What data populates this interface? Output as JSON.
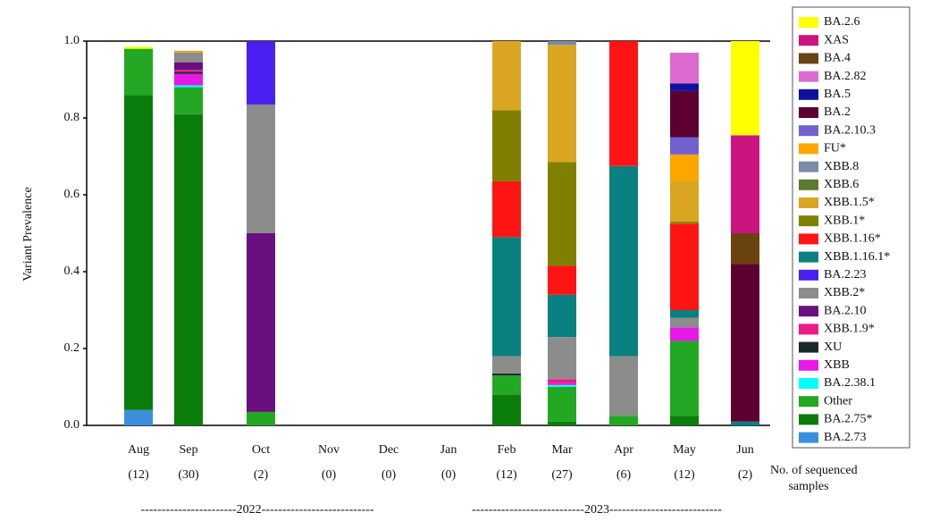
{
  "chart_data": {
    "type": "stacked_bar",
    "y_label": "Variant Prevalence",
    "categories": [
      "Aug",
      "Sep",
      "Oct",
      "Nov",
      "Dec",
      "Jan",
      "Feb",
      "Mar",
      "Apr",
      "May",
      "Jun"
    ],
    "sample_counts": [
      "(12)",
      "(30)",
      "(2)",
      "(0)",
      "(0)",
      "(0)",
      "(12)",
      "(27)",
      "(6)",
      "(12)",
      "(2)"
    ],
    "samples_note": [
      "No. of sequenced",
      "samples"
    ],
    "year_labels": [
      "-----------------------2022---------------------------",
      "---------------------------2023---------------------------"
    ],
    "ylim": [
      0,
      1
    ],
    "yticks": [
      {
        "value": 0,
        "label": "0.0"
      },
      {
        "value": 0.2,
        "label": "0.2"
      },
      {
        "value": 0.4,
        "label": "0.4"
      },
      {
        "value": 0.6,
        "label": "0.6"
      },
      {
        "value": 0.8,
        "label": "0.8"
      },
      {
        "value": 1,
        "label": "1.0"
      }
    ],
    "series": [
      {
        "name": "BA.2.73",
        "color": "#3a8fdc",
        "values": [
          0.04,
          0,
          0,
          0,
          0,
          0,
          0,
          0,
          0,
          0,
          0
        ]
      },
      {
        "name": "BA.2.75*",
        "color": "#0a7d0a",
        "values": [
          0.82,
          0.81,
          0,
          0,
          0,
          0,
          0.08,
          0.01,
          0,
          0.025,
          0
        ]
      },
      {
        "name": "Other",
        "color": "#22a822",
        "values": [
          0.12,
          0.07,
          0.035,
          0,
          0,
          0,
          0.05,
          0.09,
          0.025,
          0.195,
          0
        ]
      },
      {
        "name": "BA.2.38.1",
        "color": "#00ffff",
        "values": [
          0,
          0.005,
          0,
          0,
          0,
          0,
          0,
          0.005,
          0,
          0,
          0
        ]
      },
      {
        "name": "XBB",
        "color": "#e619e6",
        "values": [
          0,
          0.03,
          0,
          0,
          0,
          0,
          0,
          0.005,
          0,
          0.035,
          0
        ]
      },
      {
        "name": "XU",
        "color": "#1a2a2a",
        "values": [
          0,
          0.005,
          0,
          0,
          0,
          0,
          0.005,
          0,
          0,
          0,
          0
        ]
      },
      {
        "name": "XBB.1.9*",
        "color": "#ee1a8a",
        "values": [
          0,
          0.005,
          0,
          0,
          0,
          0,
          0,
          0.01,
          0,
          0,
          0
        ]
      },
      {
        "name": "BA.2.10",
        "color": "#6a0f7f",
        "values": [
          0,
          0.02,
          0.465,
          0,
          0,
          0,
          0,
          0,
          0,
          0,
          0
        ]
      },
      {
        "name": "XBB.2*",
        "color": "#8c8c8c",
        "values": [
          0,
          0.025,
          0.335,
          0,
          0,
          0,
          0.045,
          0.11,
          0.155,
          0.025,
          0
        ]
      },
      {
        "name": "BA.2.23",
        "color": "#4b1ff0",
        "values": [
          0,
          0,
          0.165,
          0,
          0,
          0,
          0,
          0,
          0,
          0,
          0
        ]
      },
      {
        "name": "XBB.1.16.1*",
        "color": "#0a8080",
        "values": [
          0,
          0,
          0,
          0,
          0,
          0,
          0.31,
          0.11,
          0.495,
          0.02,
          0.01
        ]
      },
      {
        "name": "XBB.1.16*",
        "color": "#ff1414",
        "values": [
          0,
          0,
          0,
          0,
          0,
          0,
          0.145,
          0.075,
          0.325,
          0.225,
          0
        ]
      },
      {
        "name": "XBB.1*",
        "color": "#808000",
        "values": [
          0,
          0,
          0,
          0,
          0,
          0,
          0.185,
          0.27,
          0,
          0.005,
          0
        ]
      },
      {
        "name": "XBB.1.5*",
        "color": "#daa520",
        "values": [
          0,
          0.005,
          0,
          0,
          0,
          0,
          0.18,
          0.305,
          0,
          0.105,
          0
        ]
      },
      {
        "name": "XBB.6",
        "color": "#5c7a30",
        "values": [
          0,
          0,
          0,
          0,
          0,
          0,
          0,
          0,
          0,
          0,
          0
        ]
      },
      {
        "name": "XBB.8",
        "color": "#7a8aa8",
        "values": [
          0,
          0,
          0,
          0,
          0,
          0,
          0,
          0.01,
          0,
          0,
          0
        ]
      },
      {
        "name": "FU*",
        "color": "#ffa500",
        "values": [
          0,
          0,
          0,
          0,
          0,
          0,
          0,
          0,
          0,
          0.07,
          0
        ]
      },
      {
        "name": "BA.2.10.3",
        "color": "#7060d0",
        "values": [
          0,
          0,
          0,
          0,
          0,
          0,
          0,
          0,
          0,
          0.045,
          0
        ]
      },
      {
        "name": "BA.2",
        "color": "#5c0030",
        "values": [
          0,
          0,
          0,
          0,
          0,
          0,
          0,
          0,
          0,
          0.12,
          0.41
        ]
      },
      {
        "name": "BA.5",
        "color": "#1010a0",
        "values": [
          0,
          0,
          0,
          0,
          0,
          0,
          0,
          0,
          0,
          0.02,
          0
        ]
      },
      {
        "name": "BA.2.82",
        "color": "#dd6ad0",
        "values": [
          0,
          0,
          0,
          0,
          0,
          0,
          0,
          0,
          0,
          0.08,
          0
        ]
      },
      {
        "name": "BA.4",
        "color": "#6b4310",
        "values": [
          0,
          0,
          0,
          0,
          0,
          0,
          0,
          0,
          0,
          0,
          0.08
        ]
      },
      {
        "name": "XAS",
        "color": "#cc1480",
        "values": [
          0,
          0,
          0,
          0,
          0,
          0,
          0,
          0,
          0,
          0,
          0.255
        ]
      },
      {
        "name": "BA.2.6",
        "color": "#ffff00",
        "values": [
          0.005,
          0,
          0,
          0,
          0,
          0,
          0,
          0,
          0,
          0,
          0.245
        ]
      }
    ]
  }
}
